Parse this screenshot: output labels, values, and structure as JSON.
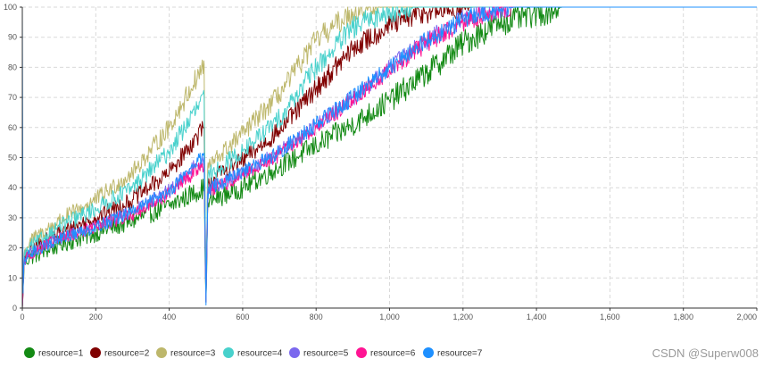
{
  "chart_data": {
    "type": "line",
    "title": "",
    "xlabel": "",
    "ylabel": "",
    "xlim": [
      0,
      2000
    ],
    "ylim": [
      0,
      100
    ],
    "x_ticks": [
      0,
      200,
      400,
      600,
      800,
      1000,
      1200,
      1400,
      1600,
      1800,
      2000
    ],
    "x_tick_labels": [
      "0",
      "200",
      "400",
      "600",
      "800",
      "1,000",
      "1,200",
      "1,400",
      "1,600",
      "1,800",
      "2,000"
    ],
    "y_ticks": [
      0,
      10,
      20,
      30,
      40,
      50,
      60,
      70,
      80,
      90,
      100
    ],
    "y_tick_labels": [
      "0",
      "10",
      "20",
      "30",
      "40",
      "50",
      "60",
      "70",
      "80",
      "90",
      "100"
    ],
    "grid": true,
    "legend_position": "bottom-left",
    "series": [
      {
        "name": "resource=1",
        "color": "#138a14",
        "noise": 2.6,
        "x": [
          0,
          5,
          20,
          100,
          200,
          300,
          400,
          495,
          500,
          505,
          515,
          600,
          700,
          800,
          900,
          1000,
          1100,
          1200,
          1300,
          1400,
          1450,
          1470,
          2000
        ],
        "y": [
          0,
          15,
          17,
          21,
          25,
          29,
          34,
          40,
          2,
          34,
          36,
          40,
          47,
          54,
          61,
          69,
          78,
          88,
          95,
          98,
          99.5,
          100,
          100
        ]
      },
      {
        "name": "resource=2",
        "color": "#800000",
        "noise": 2.2,
        "x": [
          0,
          5,
          20,
          100,
          200,
          300,
          400,
          495,
          500,
          505,
          515,
          600,
          700,
          800,
          900,
          1000,
          1100,
          1200,
          1230,
          2000
        ],
        "y": [
          0,
          16,
          19,
          25,
          30,
          36,
          45,
          60,
          2,
          40,
          43,
          49,
          59,
          73,
          86,
          94,
          98.5,
          99.8,
          100,
          100
        ]
      },
      {
        "name": "resource=3",
        "color": "#bdb76b",
        "noise": 2.2,
        "x": [
          0,
          5,
          20,
          100,
          200,
          300,
          400,
          495,
          500,
          505,
          515,
          600,
          700,
          800,
          900,
          980,
          1000,
          2000
        ],
        "y": [
          0,
          18,
          22,
          29,
          36,
          45,
          60,
          81,
          2,
          47,
          48,
          58,
          71,
          89,
          98.5,
          100,
          100,
          100
        ]
      },
      {
        "name": "resource=4",
        "color": "#48d1cc",
        "noise": 2.2,
        "x": [
          0,
          5,
          20,
          100,
          200,
          300,
          400,
          495,
          500,
          505,
          515,
          600,
          700,
          800,
          900,
          1000,
          1060,
          1080,
          2000
        ],
        "y": [
          0,
          17,
          20,
          27,
          33,
          40,
          52,
          70,
          2,
          43,
          45,
          52,
          63,
          80,
          93,
          99,
          99.8,
          100,
          100
        ]
      },
      {
        "name": "resource=5",
        "color": "#7b68ee",
        "noise": 1.8,
        "x": [
          0,
          5,
          20,
          100,
          200,
          300,
          400,
          495,
          500,
          505,
          515,
          600,
          700,
          800,
          900,
          1000,
          1100,
          1200,
          1300,
          1330,
          2000
        ],
        "y": [
          0,
          16,
          18,
          23,
          27,
          32,
          39,
          50,
          2,
          38,
          40,
          45,
          52,
          61,
          70,
          80,
          89,
          96,
          99.6,
          100,
          100
        ]
      },
      {
        "name": "resource=6",
        "color": "#ff1493",
        "noise": 1.8,
        "x": [
          0,
          5,
          20,
          100,
          200,
          300,
          400,
          495,
          500,
          505,
          515,
          600,
          700,
          800,
          900,
          1000,
          1100,
          1200,
          1300,
          1340,
          2000
        ],
        "y": [
          0,
          16,
          18,
          23,
          27,
          31,
          38,
          48,
          2,
          37,
          39,
          44,
          51,
          60,
          69,
          79,
          88,
          95,
          99.5,
          100,
          100
        ]
      },
      {
        "name": "resource=7",
        "color": "#1e90ff",
        "noise": 1.8,
        "x": [
          0,
          2,
          5,
          20,
          100,
          200,
          300,
          400,
          495,
          500,
          505,
          515,
          600,
          700,
          800,
          900,
          1000,
          1100,
          1200,
          1300,
          1340,
          2000
        ],
        "y": [
          100,
          5,
          15,
          18,
          23,
          27,
          32,
          39,
          51,
          1,
          38,
          40,
          45,
          52,
          61,
          70,
          80,
          89,
          96,
          99.5,
          100,
          100
        ]
      }
    ]
  },
  "watermark": "CSDN @Superw008"
}
